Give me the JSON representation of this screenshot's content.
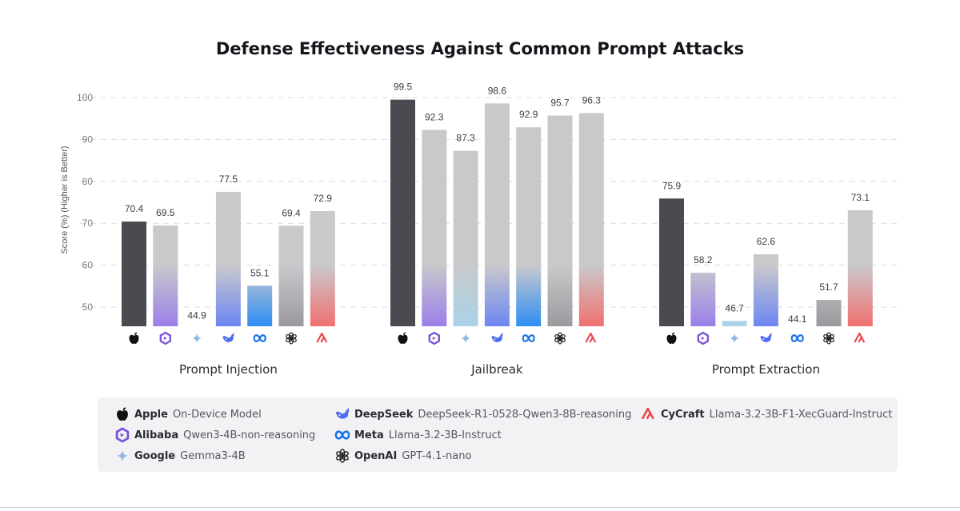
{
  "chart_data": {
    "type": "bar",
    "title": "Defense Effectiveness Against Common Prompt  Attacks",
    "ylabel": "Score (%) (Higher is Better)",
    "xlabel": "",
    "ylim": [
      45,
      105
    ],
    "yticks": [
      50,
      60,
      70,
      80,
      90,
      100
    ],
    "grid": true,
    "legend_position": "bottom",
    "categories": [
      "Prompt Injection",
      "Jailbreak",
      "Prompt Extraction"
    ],
    "series": [
      {
        "name": "Apple",
        "model": "On-Device Model",
        "icon": "apple-icon",
        "bottom_color": "#4a4a50",
        "values": [
          70.4,
          99.5,
          75.9
        ]
      },
      {
        "name": "Alibaba",
        "model": "Qwen3-4B-non-reasoning",
        "icon": "qwen-icon",
        "bottom_color": "#9b7fe8",
        "values": [
          69.5,
          92.3,
          58.2
        ]
      },
      {
        "name": "Google",
        "model": "Gemma3-4B",
        "icon": "gemma-icon",
        "bottom_color": "#a9d3e8",
        "values": [
          44.9,
          87.3,
          46.7
        ]
      },
      {
        "name": "DeepSeek",
        "model": "DeepSeek-R1-0528-Qwen3-8B-reasoning",
        "icon": "deepseek-whale-icon",
        "bottom_color": "#6d86f2",
        "values": [
          77.5,
          98.6,
          62.6
        ]
      },
      {
        "name": "Meta",
        "model": "Llama-3.2-3B-Instruct",
        "icon": "meta-infinity-icon",
        "bottom_color": "#2f8ef4",
        "values": [
          55.1,
          92.9,
          44.1
        ]
      },
      {
        "name": "OpenAI",
        "model": "GPT-4.1-nano",
        "icon": "openai-knot-icon",
        "bottom_color": "#9a9a9e",
        "values": [
          69.4,
          95.7,
          51.7
        ]
      },
      {
        "name": "CyCraft",
        "model": "Llama-3.2-3B-F1-XecGuard-Instruct",
        "icon": "cycraft-icon",
        "bottom_color": "#f07070",
        "values": [
          72.9,
          96.3,
          73.1
        ]
      }
    ],
    "colors": {
      "apple_bar": "#4a4a50",
      "bar_top": "#c9c9cc",
      "grid": "#dcdce0"
    }
  }
}
